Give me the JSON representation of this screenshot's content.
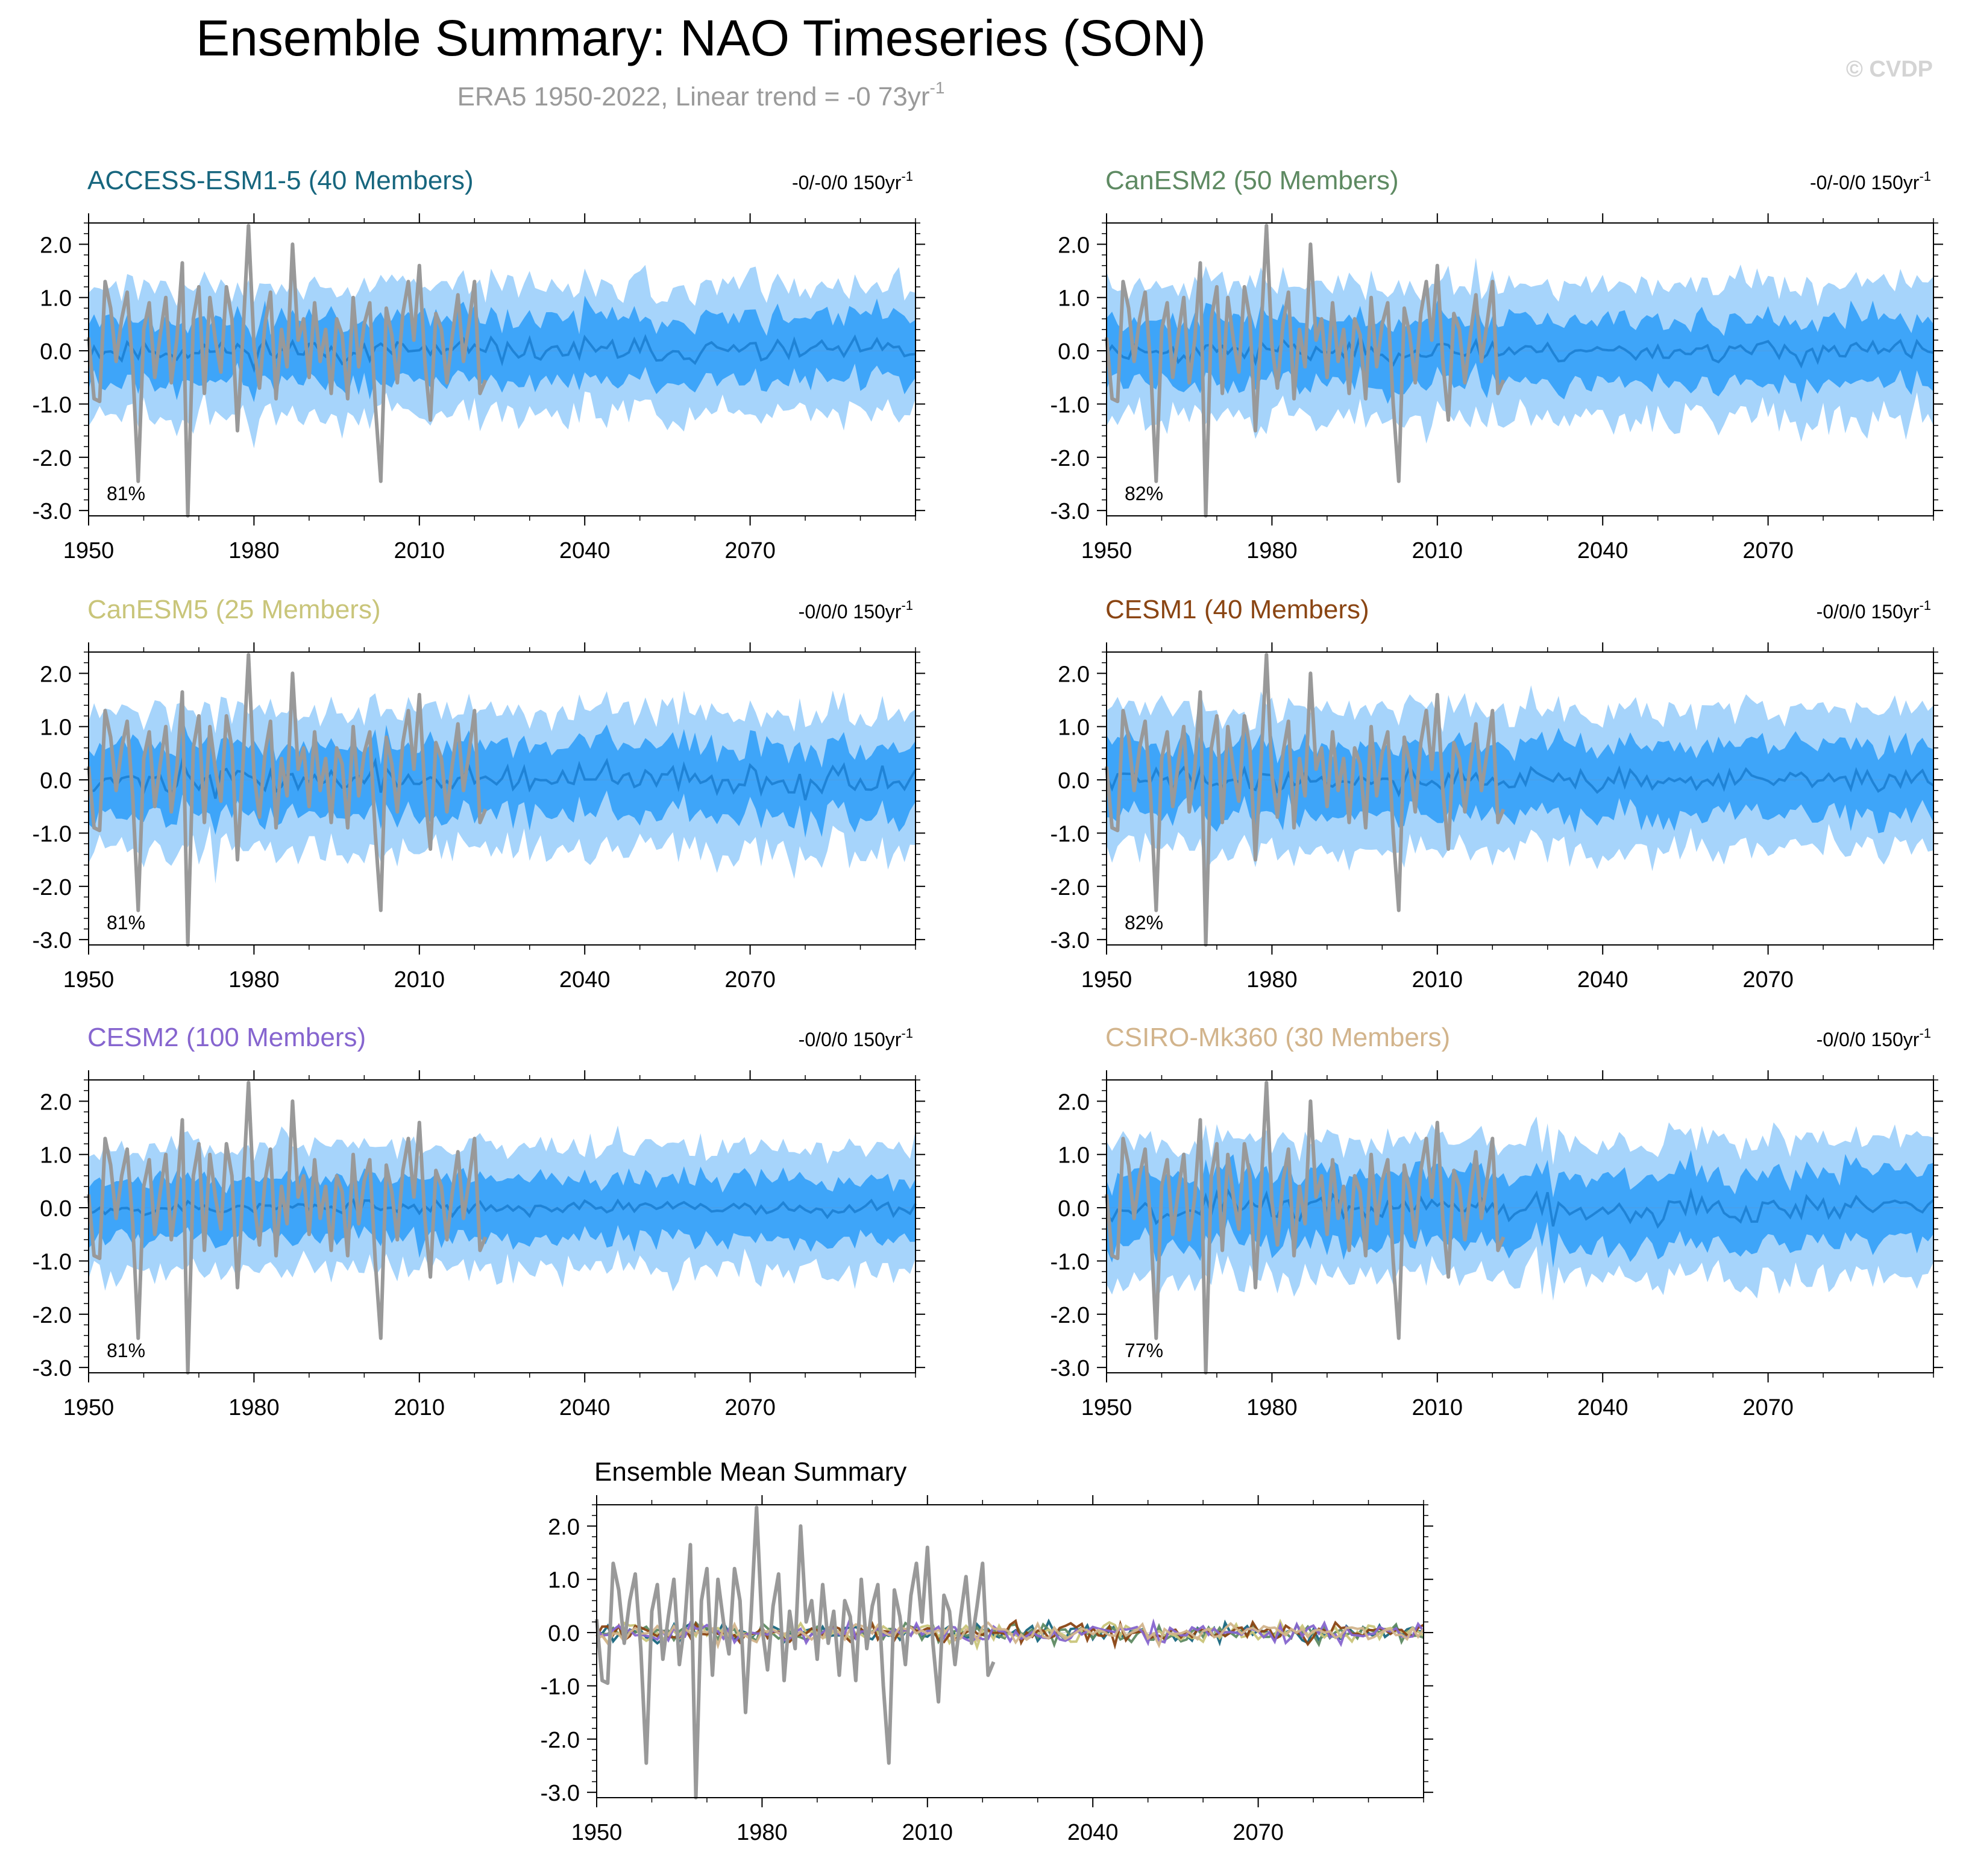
{
  "figure": {
    "title": "Ensemble Summary: NAO Timeseries (SON)",
    "subtitle_text": "ERA5 1950-2022, Linear trend = -0 73yr",
    "subtitle_sup": "-1",
    "watermark": "© CVDP"
  },
  "colors": {
    "outer_band": "#a6d4fb",
    "inner_band": "#3ea5f9",
    "ens_mean_line": "#1f83d6",
    "obs_line": "#999999",
    "axis": "#000000"
  },
  "chart_data": [
    {
      "type": "line",
      "id": "access",
      "title": "ACCESS-ESM1-5 (40 Members)",
      "title_color": "#17667e",
      "trend_text": "-0/-0/0 150yr",
      "trend_sup": "-1",
      "pct_label": "81%",
      "x_range": [
        1950,
        2100
      ],
      "x_ticks": [
        1950,
        1980,
        2010,
        2040,
        2070
      ],
      "ylim": [
        -3.1,
        2.4
      ],
      "y_ticks": [
        -3.0,
        -2.0,
        -1.0,
        0.0,
        1.0,
        2.0
      ],
      "y_tick_labels": [
        "-3.0",
        "-2.0",
        "-1.0",
        "0.0",
        "1.0",
        "2.0"
      ],
      "seed": 11,
      "band_outer": 1.2,
      "band_inner": 0.6,
      "mean_amp": 0.16
    },
    {
      "type": "line",
      "id": "canesm2",
      "title": "CanESM2 (50 Members)",
      "title_color": "#5e8a62",
      "trend_text": "-0/-0/0 150yr",
      "trend_sup": "-1",
      "pct_label": "82%",
      "x_range": [
        1950,
        2100
      ],
      "x_ticks": [
        1950,
        1980,
        2010,
        2040,
        2070
      ],
      "ylim": [
        -3.1,
        2.4
      ],
      "y_ticks": [
        -3.0,
        -2.0,
        -1.0,
        0.0,
        1.0,
        2.0
      ],
      "y_tick_labels": [
        "-3.0",
        "-2.0",
        "-1.0",
        "0.0",
        "1.0",
        "2.0"
      ],
      "seed": 23,
      "band_outer": 1.25,
      "band_inner": 0.6,
      "mean_amp": 0.15
    },
    {
      "type": "line",
      "id": "canesm5",
      "title": "CanESM5 (25 Members)",
      "title_color": "#c9c57a",
      "trend_text": "-0/0/0 150yr",
      "trend_sup": "-1",
      "pct_label": "81%",
      "x_range": [
        1950,
        2100
      ],
      "x_ticks": [
        1950,
        1980,
        2010,
        2040,
        2070
      ],
      "ylim": [
        -3.1,
        2.4
      ],
      "y_ticks": [
        -3.0,
        -2.0,
        -1.0,
        0.0,
        1.0,
        2.0
      ],
      "y_tick_labels": [
        "-3.0",
        "-2.0",
        "-1.0",
        "0.0",
        "1.0",
        "2.0"
      ],
      "seed": 37,
      "band_outer": 1.3,
      "band_inner": 0.65,
      "mean_amp": 0.2
    },
    {
      "type": "line",
      "id": "cesm1",
      "title": "CESM1 (40 Members)",
      "title_color": "#8a4513",
      "trend_text": "-0/0/0 150yr",
      "trend_sup": "-1",
      "pct_label": "82%",
      "x_range": [
        1950,
        2100
      ],
      "x_ticks": [
        1950,
        1980,
        2010,
        2040,
        2070
      ],
      "ylim": [
        -3.1,
        2.4
      ],
      "y_ticks": [
        -3.0,
        -2.0,
        -1.0,
        0.0,
        1.0,
        2.0
      ],
      "y_tick_labels": [
        "-3.0",
        "-2.0",
        "-1.0",
        "0.0",
        "1.0",
        "2.0"
      ],
      "seed": 41,
      "band_outer": 1.3,
      "band_inner": 0.65,
      "mean_amp": 0.17
    },
    {
      "type": "line",
      "id": "cesm2",
      "title": "CESM2 (100 Members)",
      "title_color": "#8665cf",
      "trend_text": "-0/0/0 150yr",
      "trend_sup": "-1",
      "pct_label": "81%",
      "x_range": [
        1950,
        2100
      ],
      "x_ticks": [
        1950,
        1980,
        2010,
        2040,
        2070
      ],
      "ylim": [
        -3.1,
        2.4
      ],
      "y_ticks": [
        -3.0,
        -2.0,
        -1.0,
        0.0,
        1.0,
        2.0
      ],
      "y_tick_labels": [
        "-3.0",
        "-2.0",
        "-1.0",
        "0.0",
        "1.0",
        "2.0"
      ],
      "seed": 53,
      "band_outer": 1.15,
      "band_inner": 0.55,
      "mean_amp": 0.1
    },
    {
      "type": "line",
      "id": "csiro",
      "title": "CSIRO-Mk360 (30 Members)",
      "title_color": "#d2b48c",
      "trend_text": "-0/0/0 150yr",
      "trend_sup": "-1",
      "pct_label": "77%",
      "x_range": [
        1950,
        2100
      ],
      "x_ticks": [
        1950,
        1980,
        2010,
        2040,
        2070
      ],
      "ylim": [
        -3.1,
        2.4
      ],
      "y_ticks": [
        -3.0,
        -2.0,
        -1.0,
        0.0,
        1.0,
        2.0
      ],
      "y_tick_labels": [
        "-3.0",
        "-2.0",
        "-1.0",
        "0.0",
        "1.0",
        "2.0"
      ],
      "seed": 67,
      "band_outer": 1.3,
      "band_inner": 0.65,
      "mean_amp": 0.2
    },
    {
      "type": "line",
      "id": "summary",
      "title": "Ensemble Mean Summary",
      "title_color": "#000000",
      "x_range": [
        1950,
        2100
      ],
      "x_ticks": [
        1950,
        1980,
        2010,
        2040,
        2070
      ],
      "ylim": [
        -3.1,
        2.4
      ],
      "y_ticks": [
        -3.0,
        -2.0,
        -1.0,
        0.0,
        1.0,
        2.0
      ],
      "y_tick_labels": [
        "-3.0",
        "-2.0",
        "-1.0",
        "0.0",
        "1.0",
        "2.0"
      ],
      "series_colors": [
        "#17667e",
        "#5e8a62",
        "#c9c57a",
        "#8a4513",
        "#8665cf",
        "#d2b48c"
      ]
    }
  ],
  "obs_series": {
    "name": "ERA5",
    "x": [
      1950,
      1951,
      1952,
      1953,
      1954,
      1955,
      1956,
      1957,
      1958,
      1959,
      1960,
      1961,
      1962,
      1963,
      1964,
      1965,
      1966,
      1967,
      1968,
      1969,
      1970,
      1971,
      1972,
      1973,
      1974,
      1975,
      1976,
      1977,
      1978,
      1979,
      1980,
      1981,
      1982,
      1983,
      1984,
      1985,
      1986,
      1987,
      1988,
      1989,
      1990,
      1991,
      1992,
      1993,
      1994,
      1995,
      1996,
      1997,
      1998,
      1999,
      2000,
      2001,
      2002,
      2003,
      2004,
      2005,
      2006,
      2007,
      2008,
      2009,
      2010,
      2011,
      2012,
      2013,
      2014,
      2015,
      2016,
      2017,
      2018,
      2019,
      2020,
      2021,
      2022
    ],
    "values": [
      0.25,
      -0.9,
      -0.95,
      1.3,
      0.8,
      -0.2,
      0.6,
      1.1,
      -0.3,
      -2.45,
      0.4,
      0.9,
      -0.5,
      0.3,
      1.0,
      -0.6,
      0.2,
      1.65,
      -3.1,
      0.6,
      1.2,
      -0.8,
      1.0,
      0.2,
      -0.4,
      1.2,
      0.6,
      -1.5,
      0.3,
      2.35,
      0.1,
      -0.7,
      0.5,
      1.1,
      -0.9,
      0.4,
      -0.3,
      2.0,
      0.2,
      0.6,
      -0.5,
      0.9,
      -0.2,
      0.4,
      -0.8,
      0.6,
      0.3,
      -0.9,
      1.0,
      -0.3,
      0.5,
      0.9,
      -1.0,
      -2.45,
      0.8,
      0.3,
      -0.6,
      0.7,
      1.3,
      0.2,
      1.6,
      -0.2,
      -1.3,
      0.7,
      0.4,
      -0.6,
      0.3,
      1.05,
      -0.2,
      0.5,
      1.3,
      -0.8,
      -0.55
    ]
  }
}
